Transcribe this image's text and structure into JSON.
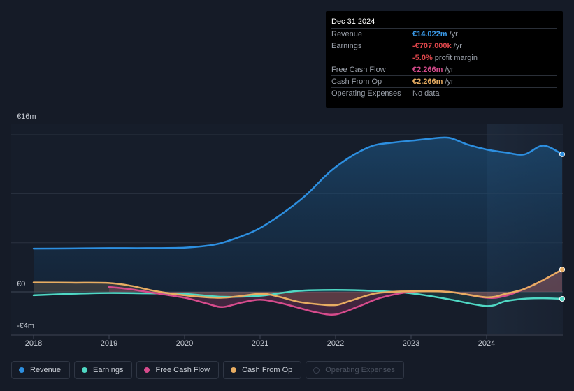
{
  "chart_data": {
    "type": "line",
    "ylabel_top": "€16m",
    "ylabel_zero": "€0",
    "ylabel_bottom": "-€4m",
    "ylim": [
      -4,
      16
    ],
    "xlim": [
      2018,
      2025
    ],
    "x_ticks": [
      "2018",
      "2019",
      "2020",
      "2021",
      "2022",
      "2023",
      "2024"
    ],
    "forecast_start": 2024,
    "series": [
      {
        "name": "Revenue",
        "color": "#2d8fe0",
        "points": [
          [
            2018.0,
            4.4
          ],
          [
            2018.5,
            4.42
          ],
          [
            2019.0,
            4.45
          ],
          [
            2019.5,
            4.45
          ],
          [
            2020.0,
            4.5
          ],
          [
            2020.3,
            4.7
          ],
          [
            2020.5,
            5.0
          ],
          [
            2020.8,
            5.8
          ],
          [
            2021.0,
            6.5
          ],
          [
            2021.3,
            8.0
          ],
          [
            2021.6,
            9.8
          ],
          [
            2021.85,
            11.7
          ],
          [
            2022.0,
            12.7
          ],
          [
            2022.25,
            14.0
          ],
          [
            2022.5,
            14.9
          ],
          [
            2022.75,
            15.2
          ],
          [
            2023.0,
            15.4
          ],
          [
            2023.25,
            15.6
          ],
          [
            2023.5,
            15.7
          ],
          [
            2023.75,
            15.0
          ],
          [
            2024.0,
            14.5
          ],
          [
            2024.25,
            14.2
          ],
          [
            2024.5,
            14.0
          ],
          [
            2024.75,
            14.9
          ],
          [
            2025.0,
            14.022
          ]
        ]
      },
      {
        "name": "Earnings",
        "color": "#4fd8c4",
        "points": [
          [
            2018.0,
            -0.35
          ],
          [
            2018.5,
            -0.2
          ],
          [
            2019.0,
            -0.12
          ],
          [
            2019.5,
            -0.15
          ],
          [
            2020.0,
            -0.2
          ],
          [
            2020.5,
            -0.5
          ],
          [
            2021.0,
            -0.4
          ],
          [
            2021.5,
            0.1
          ],
          [
            2022.0,
            0.2
          ],
          [
            2022.5,
            0.1
          ],
          [
            2023.0,
            -0.15
          ],
          [
            2023.5,
            -0.75
          ],
          [
            2024.0,
            -1.45
          ],
          [
            2024.25,
            -0.95
          ],
          [
            2024.5,
            -0.7
          ],
          [
            2024.75,
            -0.65
          ],
          [
            2025.0,
            -0.707
          ]
        ]
      },
      {
        "name": "Free Cash Flow",
        "color": "#d64b8c",
        "points": [
          [
            2019.0,
            0.5
          ],
          [
            2019.25,
            0.3
          ],
          [
            2019.5,
            0.0
          ],
          [
            2020.0,
            -0.6
          ],
          [
            2020.3,
            -1.2
          ],
          [
            2020.5,
            -1.55
          ],
          [
            2020.75,
            -1.1
          ],
          [
            2021.0,
            -0.8
          ],
          [
            2021.25,
            -1.1
          ],
          [
            2021.5,
            -1.6
          ],
          [
            2021.75,
            -2.1
          ],
          [
            2022.0,
            -2.3
          ],
          [
            2022.3,
            -1.5
          ],
          [
            2022.6,
            -0.6
          ],
          [
            2023.0,
            0.0
          ],
          [
            2023.5,
            0.0
          ],
          [
            2024.0,
            -0.6
          ],
          [
            2024.25,
            -0.4
          ],
          [
            2024.5,
            0.3
          ],
          [
            2024.75,
            1.2
          ],
          [
            2025.0,
            2.266
          ]
        ]
      },
      {
        "name": "Cash From Op",
        "color": "#e8ad62",
        "points": [
          [
            2018.0,
            0.95
          ],
          [
            2018.5,
            0.93
          ],
          [
            2019.0,
            0.9
          ],
          [
            2019.3,
            0.6
          ],
          [
            2019.6,
            0.1
          ],
          [
            2020.0,
            -0.35
          ],
          [
            2020.5,
            -0.6
          ],
          [
            2021.0,
            -0.2
          ],
          [
            2021.25,
            -0.5
          ],
          [
            2021.5,
            -1.0
          ],
          [
            2021.75,
            -1.25
          ],
          [
            2022.0,
            -1.35
          ],
          [
            2022.2,
            -0.9
          ],
          [
            2022.5,
            -0.2
          ],
          [
            2022.75,
            0.0
          ],
          [
            2023.0,
            0.05
          ],
          [
            2023.5,
            0.0
          ],
          [
            2024.0,
            -0.55
          ],
          [
            2024.25,
            -0.2
          ],
          [
            2024.5,
            0.3
          ],
          [
            2024.75,
            1.2
          ],
          [
            2025.0,
            2.266
          ]
        ]
      }
    ]
  },
  "tooltip": {
    "date": "Dec 31 2024",
    "rows": [
      {
        "label": "Revenue",
        "value": "€14.022m",
        "unit": " /yr",
        "color": "#3b9ae8"
      },
      {
        "label": "Earnings",
        "value": "-€707.000k",
        "unit": " /yr",
        "color": "#e0474c"
      },
      {
        "label": "",
        "value": "-5.0%",
        "unit": " profit margin",
        "color": "#e0474c"
      },
      {
        "label": "Free Cash Flow",
        "value": "€2.266m",
        "unit": " /yr",
        "color": "#d64b8c"
      },
      {
        "label": "Cash From Op",
        "value": "€2.266m",
        "unit": " /yr",
        "color": "#e8ad62"
      },
      {
        "label": "Operating Expenses",
        "value": "",
        "unit": "No data",
        "color": "#9aa0aa"
      }
    ]
  },
  "legend": [
    {
      "label": "Revenue",
      "color": "#2d8fe0",
      "active": true
    },
    {
      "label": "Earnings",
      "color": "#4fd8c4",
      "active": true
    },
    {
      "label": "Free Cash Flow",
      "color": "#d64b8c",
      "active": true
    },
    {
      "label": "Cash From Op",
      "color": "#e8ad62",
      "active": true
    },
    {
      "label": "Operating Expenses",
      "color": "#3a4150",
      "active": false
    }
  ]
}
